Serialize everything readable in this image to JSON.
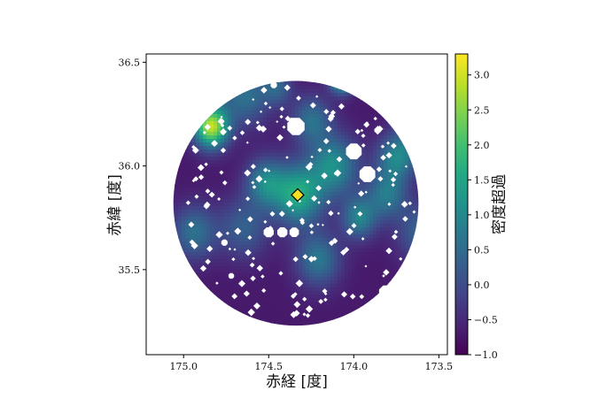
{
  "chart_data": {
    "type": "heatmap",
    "title": "",
    "xlabel": "赤経 [度]",
    "ylabel": "赤緯 [度]",
    "x_tick_labels": [
      "175.0",
      "174.5",
      "174.0",
      "173.5"
    ],
    "x_ticks": [
      175.0,
      174.5,
      174.0,
      173.5
    ],
    "y_tick_labels": [
      "36.5",
      "36.0",
      "35.5"
    ],
    "y_ticks": [
      36.5,
      36.0,
      35.5
    ],
    "xlim": [
      175.22,
      173.45
    ],
    "ylim": [
      35.09,
      36.54
    ],
    "x_inverted": true,
    "colorbar": {
      "label": "密度超過",
      "range": [
        -1.0,
        3.3
      ],
      "tick_values": [
        3.0,
        2.5,
        2.0,
        1.5,
        1.0,
        0.5,
        0.0,
        -0.5,
        -1.0
      ],
      "tick_labels": [
        "3.0",
        "2.5",
        "2.0",
        "1.5",
        "1.0",
        "0.5",
        "0.0",
        "−0.5",
        "−1.0"
      ],
      "colormap": "viridis"
    },
    "field": {
      "center": [
        174.34,
        35.82
      ],
      "radius_deg": 0.72,
      "baseline": -0.7,
      "peaks": [
        {
          "ra": 174.84,
          "dec": 36.19,
          "amp": 3.6,
          "sigma": 0.07
        },
        {
          "ra": 174.07,
          "dec": 36.43,
          "amp": 3.2,
          "sigma": 0.05
        },
        {
          "ra": 174.33,
          "dec": 35.86,
          "amp": 2.3,
          "sigma": 0.1
        },
        {
          "ra": 174.52,
          "dec": 35.92,
          "amp": 1.6,
          "sigma": 0.08
        },
        {
          "ra": 174.12,
          "dec": 36.0,
          "amp": 1.8,
          "sigma": 0.1
        },
        {
          "ra": 173.97,
          "dec": 35.75,
          "amp": 1.6,
          "sigma": 0.07
        },
        {
          "ra": 173.81,
          "dec": 35.86,
          "amp": 1.4,
          "sigma": 0.08
        },
        {
          "ra": 173.75,
          "dec": 36.04,
          "amp": 1.6,
          "sigma": 0.08
        },
        {
          "ra": 173.6,
          "dec": 35.68,
          "amp": 1.1,
          "sigma": 0.1
        },
        {
          "ra": 174.64,
          "dec": 36.34,
          "amp": 1.3,
          "sigma": 0.1
        },
        {
          "ra": 174.25,
          "dec": 36.22,
          "amp": 1.3,
          "sigma": 0.08
        },
        {
          "ra": 174.94,
          "dec": 35.68,
          "amp": 1.3,
          "sigma": 0.09
        },
        {
          "ra": 174.65,
          "dec": 35.7,
          "amp": 1.0,
          "sigma": 0.1
        },
        {
          "ra": 174.21,
          "dec": 35.55,
          "amp": 1.4,
          "sigma": 0.09
        },
        {
          "ra": 173.62,
          "dec": 36.15,
          "amp": 1.0,
          "sigma": 0.08
        },
        {
          "ra": 174.45,
          "dec": 36.38,
          "amp": 1.0,
          "sigma": 0.06
        }
      ],
      "masks": [
        {
          "ra": 174.34,
          "dec": 36.19,
          "r": 0.055
        },
        {
          "ra": 174.0,
          "dec": 36.07,
          "r": 0.05
        },
        {
          "ra": 173.92,
          "dec": 35.96,
          "r": 0.05
        },
        {
          "ra": 173.81,
          "dec": 35.39,
          "r": 0.045
        },
        {
          "ra": 174.5,
          "dec": 35.68,
          "r": 0.032
        },
        {
          "ra": 174.42,
          "dec": 35.68,
          "r": 0.032
        },
        {
          "ra": 174.35,
          "dec": 35.68,
          "r": 0.03
        },
        {
          "ra": 174.76,
          "dec": 35.63,
          "r": 0.02
        },
        {
          "ra": 174.47,
          "dec": 36.39,
          "r": 0.02
        },
        {
          "ra": 174.72,
          "dec": 35.47,
          "r": 0.018
        }
      ]
    },
    "marker": {
      "shape": "diamond",
      "ra": 174.33,
      "dec": 35.86,
      "color": "#f5e01b"
    }
  }
}
